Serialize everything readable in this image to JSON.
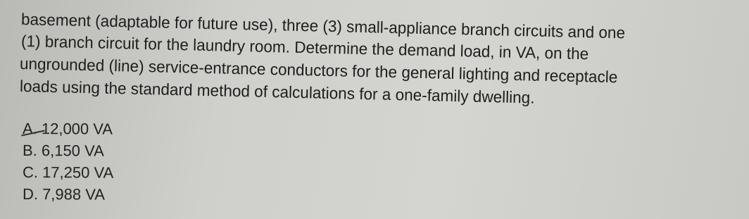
{
  "question": {
    "lines": [
      "basement (adaptable for future use), three (3) small-appliance branch circuits and one",
      "(1) branch circuit for the laundry room.  Determine the demand load, in VA, on the",
      "ungrounded (line) service-entrance conductors for the general lighting and receptacle",
      "loads using the standard method of calculations for a one-family dwelling."
    ]
  },
  "options": [
    "A. 12,000 VA",
    "B. 6,150 VA",
    "C. 17,250 VA",
    "D. 7,988 VA"
  ]
}
